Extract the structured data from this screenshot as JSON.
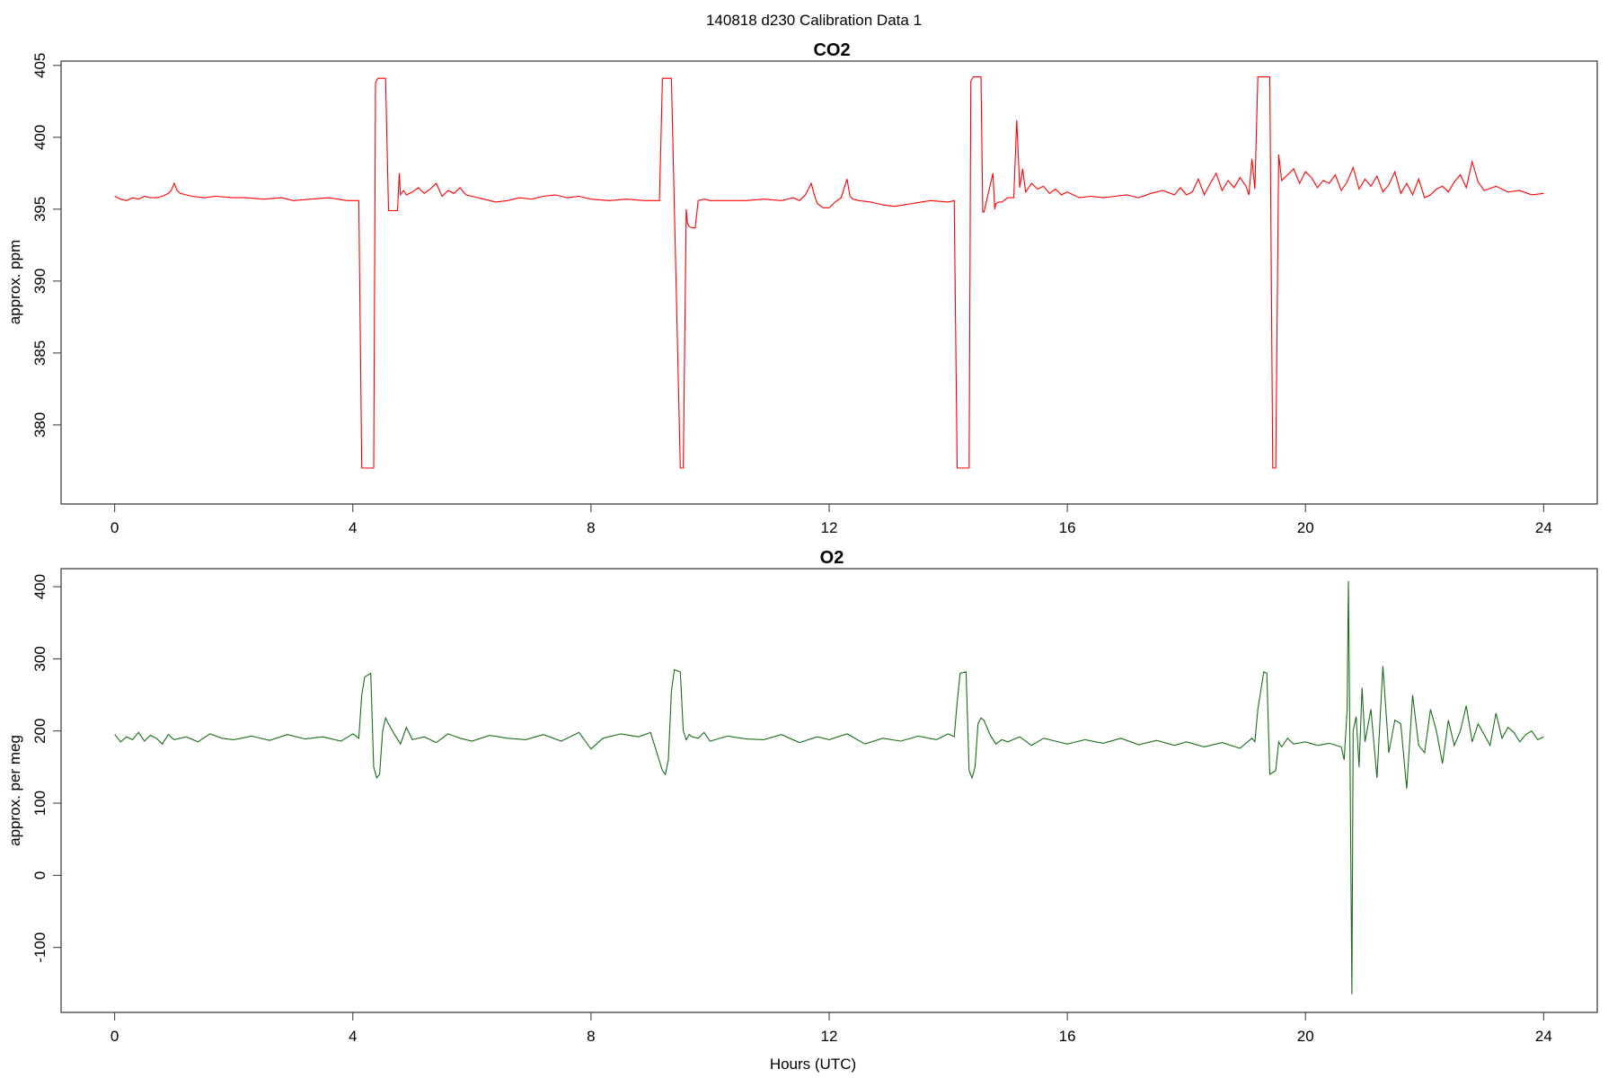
{
  "figure": {
    "title": "140818   d230   Calibration Data 1"
  },
  "chart_data": [
    {
      "type": "line",
      "title": "CO2",
      "xlabel": "",
      "ylabel": "approx. ppm",
      "xlim": [
        -0.9,
        24.9
      ],
      "ylim": [
        374.5,
        405.3
      ],
      "xticks": [
        0,
        4,
        8,
        12,
        16,
        20,
        24
      ],
      "yticks": [
        380,
        385,
        390,
        395,
        400,
        405
      ],
      "color": "#ff0000",
      "series": [
        {
          "x": [
            0.0,
            0.1,
            0.2,
            0.3,
            0.4,
            0.5,
            0.6,
            0.7,
            0.8,
            0.9,
            0.95,
            1.0,
            1.05,
            1.1,
            1.2,
            1.3,
            1.5,
            1.7,
            2.0,
            2.2,
            2.5,
            2.8,
            3.0,
            3.3,
            3.6,
            3.9,
            4.1,
            4.15,
            4.2,
            4.35,
            4.38,
            4.42,
            4.5,
            4.55,
            4.6,
            4.75,
            4.78,
            4.8,
            4.85,
            4.9,
            5.0,
            5.1,
            5.2,
            5.3,
            5.4,
            5.5,
            5.6,
            5.7,
            5.8,
            5.9,
            6.0,
            6.2,
            6.4,
            6.6,
            6.8,
            7.0,
            7.2,
            7.4,
            7.6,
            7.8,
            8.0,
            8.3,
            8.6,
            8.9,
            9.15,
            9.2,
            9.25,
            9.35,
            9.5,
            9.55,
            9.6,
            9.62,
            9.65,
            9.7,
            9.75,
            9.8,
            9.9,
            10.0,
            10.3,
            10.6,
            10.9,
            11.2,
            11.4,
            11.5,
            11.6,
            11.7,
            11.75,
            11.8,
            11.9,
            12.0,
            12.1,
            12.2,
            12.3,
            12.35,
            12.4,
            12.5,
            12.7,
            12.9,
            13.1,
            13.4,
            13.7,
            14.0,
            14.1,
            14.15,
            14.2,
            14.35,
            14.38,
            14.42,
            14.55,
            14.58,
            14.6,
            14.75,
            14.78,
            14.8,
            14.85,
            14.9,
            15.0,
            15.1,
            15.15,
            15.2,
            15.25,
            15.3,
            15.4,
            15.5,
            15.6,
            15.7,
            15.8,
            15.9,
            16.0,
            16.2,
            16.4,
            16.6,
            16.8,
            17.0,
            17.2,
            17.4,
            17.6,
            17.8,
            17.9,
            18.0,
            18.1,
            18.2,
            18.3,
            18.4,
            18.5,
            18.6,
            18.7,
            18.8,
            18.9,
            19.0,
            19.05,
            19.1,
            19.15,
            19.2,
            19.3,
            19.4,
            19.45,
            19.5,
            19.55,
            19.6,
            19.7,
            19.8,
            19.9,
            20.0,
            20.1,
            20.2,
            20.3,
            20.4,
            20.5,
            20.6,
            20.7,
            20.8,
            20.9,
            21.0,
            21.1,
            21.2,
            21.3,
            21.4,
            21.5,
            21.6,
            21.7,
            21.8,
            21.9,
            22.0,
            22.1,
            22.2,
            22.3,
            22.4,
            22.5,
            22.6,
            22.7,
            22.8,
            22.9,
            23.0,
            23.2,
            23.4,
            23.6,
            23.8,
            24.0
          ],
          "y": [
            395.9,
            395.7,
            395.6,
            395.8,
            395.7,
            395.9,
            395.8,
            395.8,
            395.9,
            396.1,
            396.3,
            396.8,
            396.3,
            396.1,
            396.0,
            395.9,
            395.8,
            395.9,
            395.8,
            395.8,
            395.7,
            395.8,
            395.6,
            395.7,
            395.8,
            395.6,
            395.6,
            377.0,
            377.0,
            377.0,
            403.8,
            404.1,
            404.1,
            404.1,
            394.9,
            394.9,
            397.5,
            396.0,
            396.3,
            396.0,
            396.2,
            396.5,
            396.1,
            396.4,
            396.8,
            395.9,
            396.3,
            396.1,
            396.5,
            396.0,
            395.9,
            395.7,
            395.5,
            395.6,
            395.8,
            395.7,
            395.9,
            396.0,
            395.8,
            395.9,
            395.7,
            395.6,
            395.7,
            395.6,
            395.6,
            404.1,
            404.1,
            404.1,
            377.0,
            377.0,
            395.0,
            394.0,
            393.8,
            393.7,
            393.7,
            395.6,
            395.7,
            395.6,
            395.6,
            395.6,
            395.7,
            395.6,
            395.8,
            395.6,
            396.0,
            396.8,
            396.0,
            395.4,
            395.1,
            395.1,
            395.5,
            395.8,
            397.1,
            395.9,
            395.7,
            395.6,
            395.5,
            395.3,
            395.2,
            395.4,
            395.6,
            395.5,
            395.6,
            377.0,
            377.0,
            377.0,
            403.9,
            404.2,
            404.2,
            394.8,
            394.8,
            397.5,
            395.0,
            395.4,
            395.5,
            395.5,
            395.8,
            395.8,
            401.2,
            396.5,
            397.8,
            396.2,
            396.8,
            396.4,
            396.6,
            396.1,
            396.4,
            396.0,
            396.2,
            395.8,
            395.9,
            395.8,
            395.9,
            396.0,
            395.8,
            396.1,
            396.3,
            396.0,
            396.5,
            396.0,
            396.2,
            397.1,
            396.0,
            396.8,
            397.5,
            396.3,
            397.0,
            396.5,
            397.2,
            396.6,
            396.0,
            398.5,
            396.4,
            404.2,
            404.2,
            404.2,
            377.0,
            377.0,
            398.8,
            397.0,
            397.4,
            397.8,
            396.8,
            397.6,
            397.2,
            396.5,
            397.0,
            396.8,
            397.4,
            396.3,
            396.9,
            397.9,
            396.4,
            397.1,
            396.6,
            397.3,
            396.2,
            396.7,
            397.6,
            396.1,
            396.8,
            396.0,
            397.1,
            395.8,
            396.0,
            396.4,
            396.6,
            396.2,
            396.9,
            397.4,
            396.5,
            398.3,
            396.9,
            396.3,
            396.6,
            396.2,
            396.3,
            396.0,
            396.1
          ]
        }
      ]
    },
    {
      "type": "line",
      "title": "O2",
      "xlabel": "Hours (UTC)",
      "ylabel": "approx. per meg",
      "xlim": [
        -0.9,
        24.9
      ],
      "ylim": [
        -190,
        425
      ],
      "xticks": [
        0,
        4,
        8,
        12,
        16,
        20,
        24
      ],
      "yticks": [
        -100,
        0,
        100,
        200,
        300,
        400
      ],
      "color": "#1a6e1a",
      "series": [
        {
          "x": [
            0.0,
            0.1,
            0.2,
            0.3,
            0.4,
            0.5,
            0.6,
            0.7,
            0.8,
            0.9,
            1.0,
            1.2,
            1.4,
            1.6,
            1.8,
            2.0,
            2.3,
            2.6,
            2.9,
            3.2,
            3.5,
            3.8,
            4.0,
            4.1,
            4.15,
            4.2,
            4.3,
            4.35,
            4.4,
            4.45,
            4.5,
            4.55,
            4.6,
            4.7,
            4.8,
            4.9,
            5.0,
            5.2,
            5.4,
            5.6,
            5.8,
            6.0,
            6.3,
            6.6,
            6.9,
            7.2,
            7.5,
            7.8,
            8.0,
            8.2,
            8.5,
            8.8,
            9.0,
            9.2,
            9.25,
            9.3,
            9.35,
            9.4,
            9.5,
            9.55,
            9.6,
            9.65,
            9.7,
            9.8,
            9.9,
            10.0,
            10.3,
            10.6,
            10.9,
            11.2,
            11.5,
            11.8,
            12.0,
            12.3,
            12.6,
            12.9,
            13.2,
            13.5,
            13.8,
            14.0,
            14.1,
            14.15,
            14.2,
            14.3,
            14.35,
            14.4,
            14.45,
            14.5,
            14.55,
            14.6,
            14.7,
            14.8,
            14.9,
            15.0,
            15.2,
            15.4,
            15.6,
            15.8,
            16.0,
            16.3,
            16.6,
            16.9,
            17.2,
            17.5,
            17.8,
            18.0,
            18.3,
            18.6,
            18.9,
            19.1,
            19.15,
            19.2,
            19.3,
            19.35,
            19.4,
            19.5,
            19.55,
            19.6,
            19.7,
            19.8,
            20.0,
            20.2,
            20.4,
            20.6,
            20.65,
            20.7,
            20.72,
            20.75,
            20.78,
            20.8,
            20.85,
            20.9,
            20.95,
            21.0,
            21.1,
            21.2,
            21.3,
            21.4,
            21.5,
            21.6,
            21.7,
            21.8,
            21.9,
            22.0,
            22.1,
            22.2,
            22.3,
            22.4,
            22.5,
            22.6,
            22.7,
            22.8,
            22.9,
            23.0,
            23.1,
            23.2,
            23.3,
            23.4,
            23.5,
            23.6,
            23.7,
            23.8,
            23.9,
            24.0
          ],
          "y": [
            195,
            185,
            192,
            188,
            198,
            186,
            194,
            190,
            182,
            195,
            188,
            192,
            185,
            196,
            190,
            188,
            193,
            187,
            195,
            189,
            192,
            186,
            196,
            190,
            250,
            275,
            280,
            150,
            135,
            140,
            200,
            218,
            210,
            195,
            182,
            205,
            188,
            192,
            184,
            196,
            190,
            186,
            194,
            190,
            188,
            195,
            186,
            198,
            175,
            190,
            196,
            192,
            198,
            145,
            140,
            160,
            255,
            285,
            282,
            200,
            188,
            195,
            192,
            190,
            198,
            186,
            193,
            189,
            188,
            195,
            184,
            192,
            188,
            196,
            182,
            190,
            186,
            193,
            188,
            196,
            192,
            240,
            280,
            282,
            145,
            135,
            150,
            210,
            218,
            215,
            195,
            182,
            188,
            185,
            192,
            180,
            190,
            186,
            182,
            188,
            183,
            190,
            181,
            187,
            180,
            185,
            178,
            184,
            176,
            190,
            185,
            230,
            282,
            280,
            140,
            145,
            185,
            178,
            190,
            182,
            185,
            180,
            183,
            178,
            160,
            230,
            408,
            150,
            -165,
            200,
            220,
            150,
            260,
            185,
            230,
            135,
            290,
            170,
            215,
            210,
            120,
            250,
            180,
            170,
            230,
            200,
            155,
            215,
            180,
            200,
            235,
            185,
            210,
            195,
            180,
            225,
            190,
            205,
            198,
            185,
            195,
            200,
            188,
            192
          ]
        }
      ]
    }
  ]
}
